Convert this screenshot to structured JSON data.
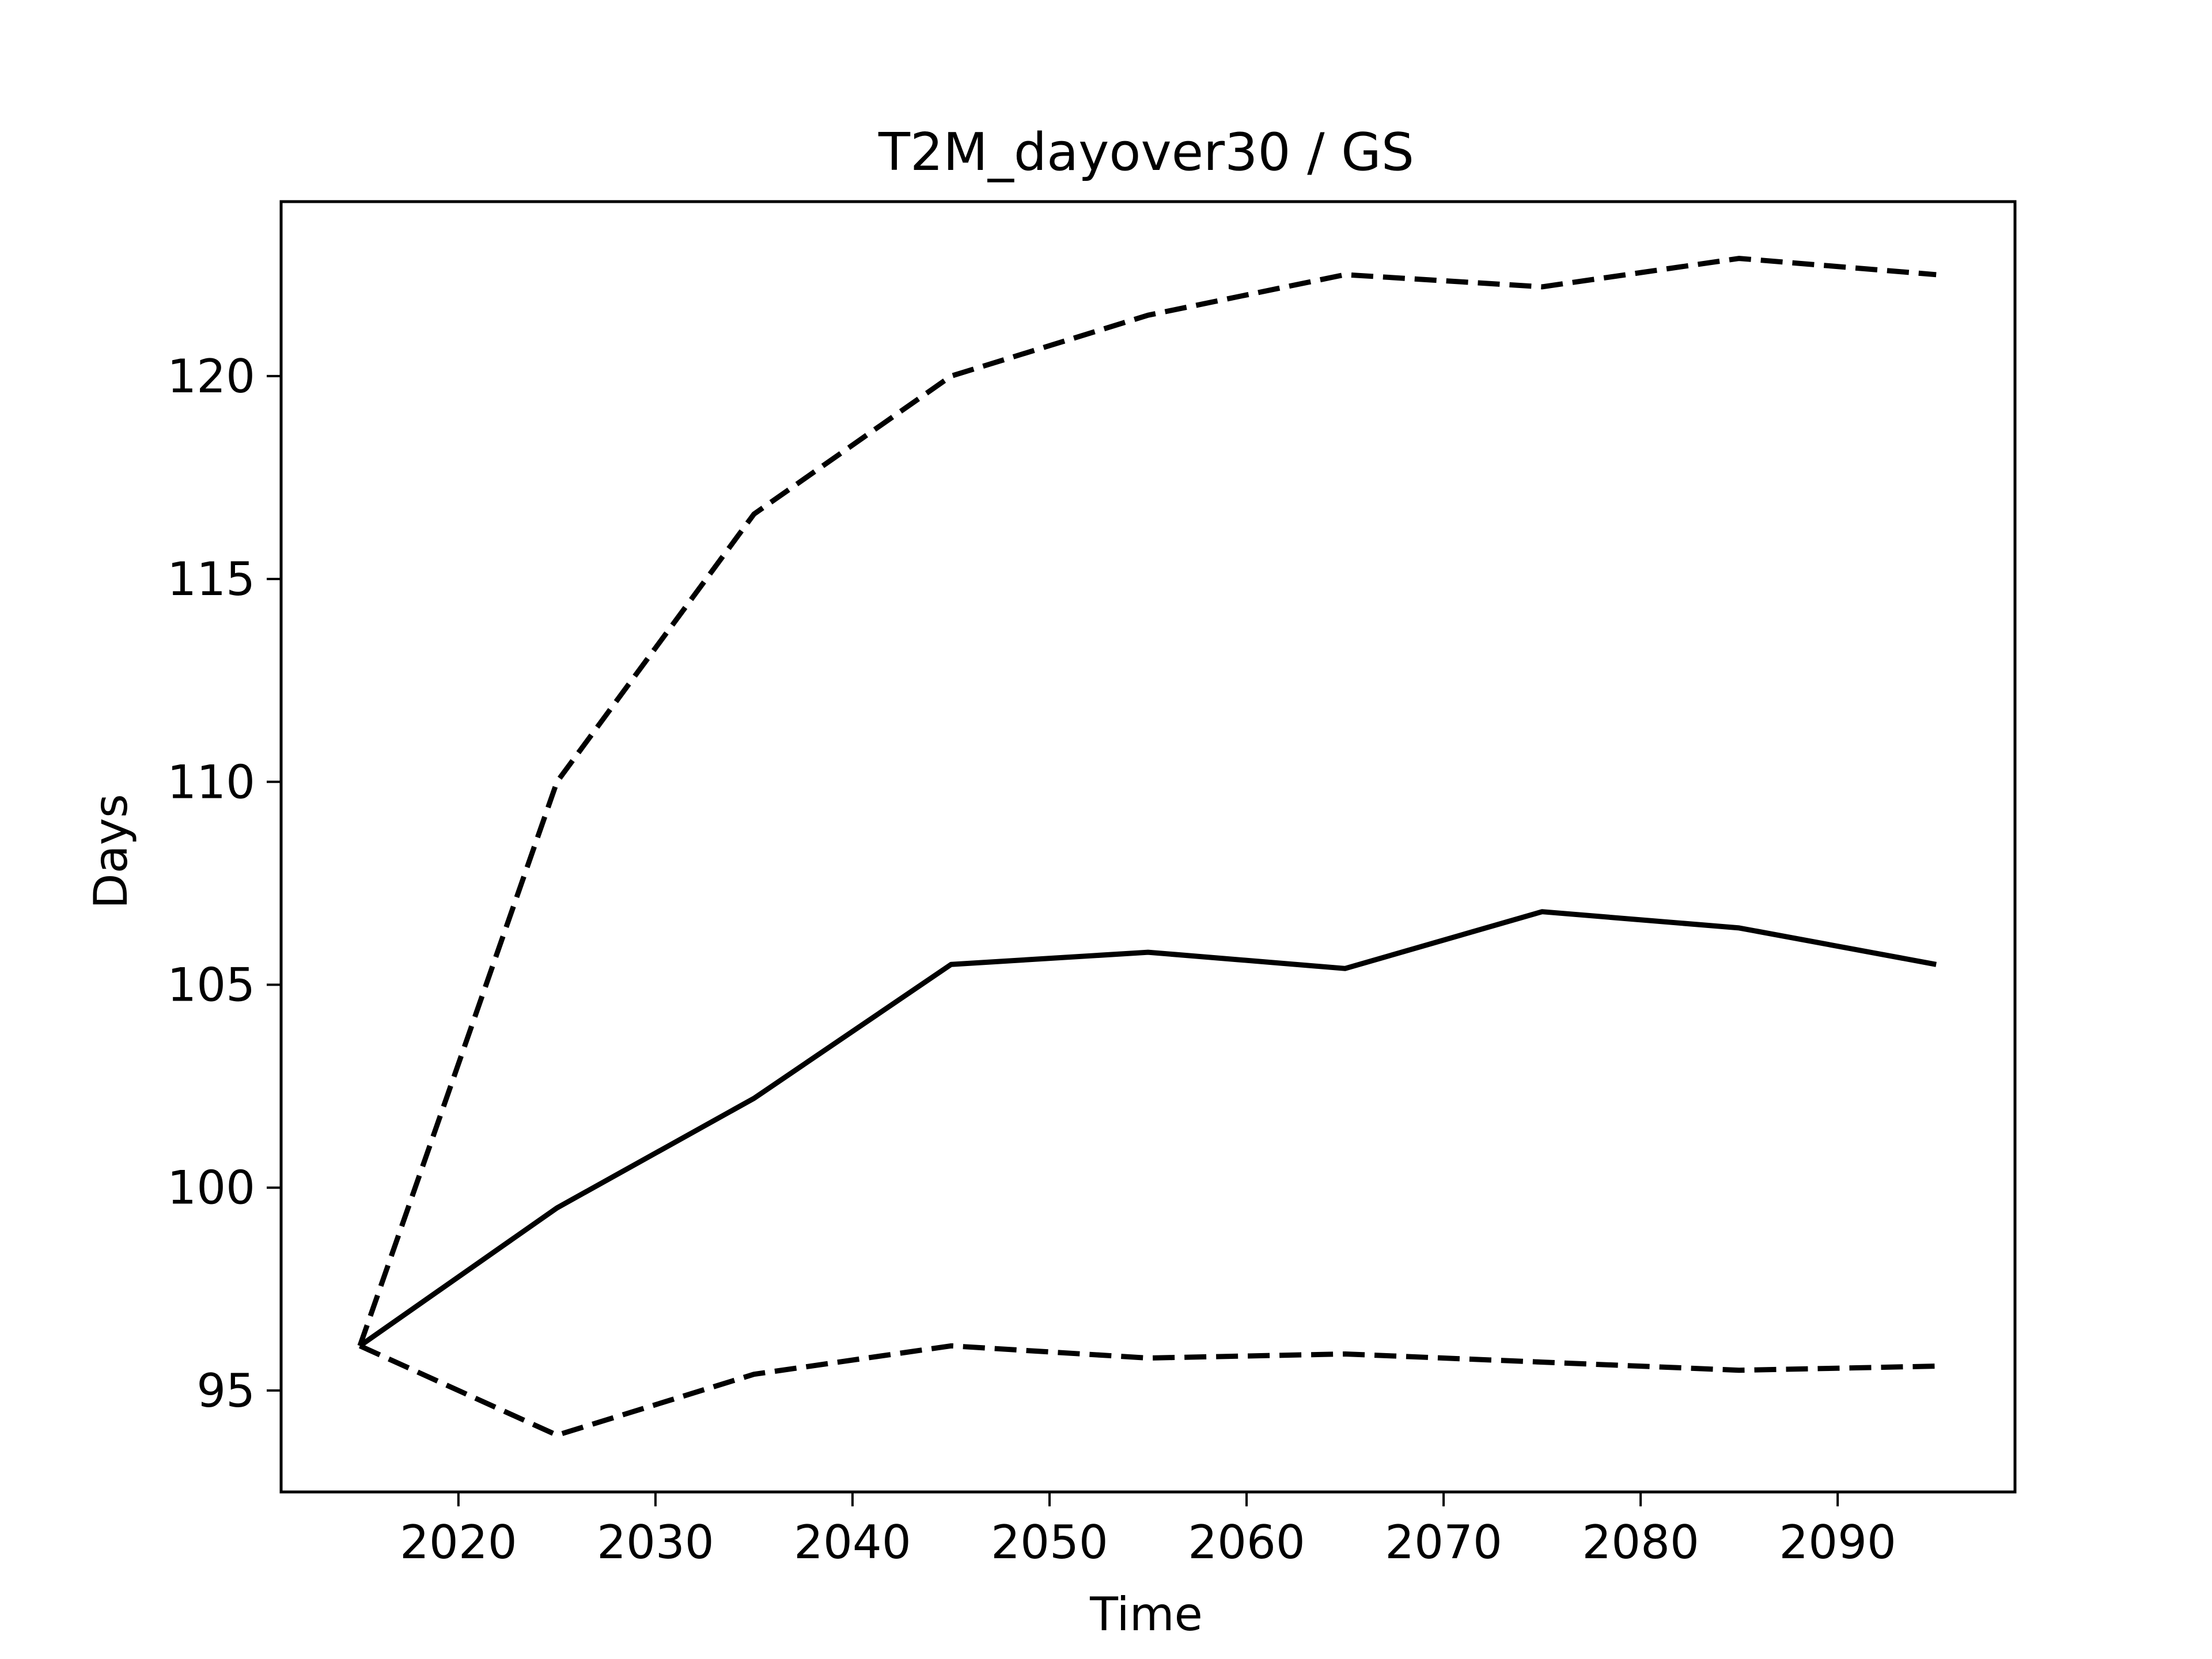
{
  "chart_data": {
    "type": "line",
    "title": "T2M_dayover30 / GS",
    "xlabel": "Time",
    "ylabel": "Days",
    "x": [
      2015,
      2025,
      2035,
      2045,
      2055,
      2065,
      2075,
      2085,
      2095
    ],
    "series": [
      {
        "style": "solid",
        "color": "#000000",
        "values": [
          96.1,
          99.5,
          102.2,
          105.5,
          105.8,
          105.4,
          106.8,
          106.4,
          105.5
        ]
      },
      {
        "style": "dashed",
        "color": "#000000",
        "values": [
          96.1,
          110.0,
          116.6,
          120.0,
          121.5,
          122.5,
          122.2,
          122.9,
          122.5
        ]
      },
      {
        "style": "dashed",
        "color": "#000000",
        "values": [
          96.1,
          93.9,
          95.4,
          96.1,
          95.8,
          95.9,
          95.7,
          95.5,
          95.6
        ]
      }
    ],
    "xlim": [
      2011,
      2099
    ],
    "ylim": [
      92.5,
      124.3
    ],
    "xticks": [
      2020,
      2030,
      2040,
      2050,
      2060,
      2070,
      2080,
      2090
    ],
    "xtick_labels": [
      "2020",
      "2030",
      "2040",
      "2050",
      "2060",
      "2070",
      "2080",
      "2090"
    ],
    "yticks": [
      95,
      100,
      105,
      110,
      115,
      120
    ],
    "ytick_labels": [
      "95",
      "100",
      "105",
      "110",
      "115",
      "120"
    ],
    "grid": false,
    "legend": "none"
  }
}
